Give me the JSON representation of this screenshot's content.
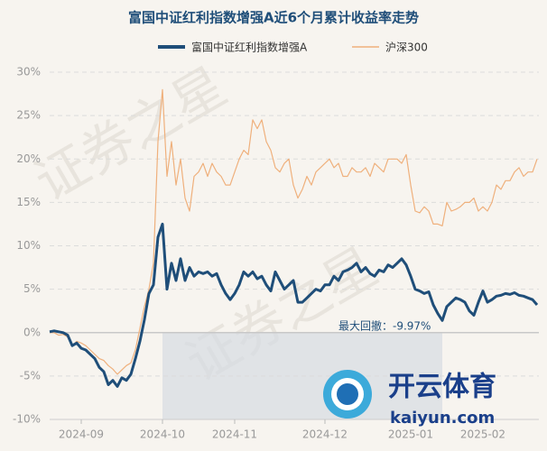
{
  "chart_data": {
    "type": "line",
    "title": "富国中证红利指数增强A近6个月累计收益率走势",
    "categories": [
      null,
      null,
      null,
      null,
      null,
      null,
      null,
      "2024-09",
      null,
      null,
      null,
      null,
      null,
      null,
      null,
      null,
      null,
      null,
      null,
      null,
      null,
      null,
      null,
      null,
      null,
      "2024-10",
      null,
      null,
      null,
      null,
      null,
      null,
      null,
      null,
      null,
      null,
      null,
      null,
      null,
      null,
      null,
      "2024-11",
      null,
      null,
      null,
      null,
      null,
      null,
      null,
      null,
      null,
      null,
      null,
      null,
      null,
      null,
      null,
      null,
      null,
      null,
      null,
      "2024-12",
      null,
      null,
      null,
      null,
      null,
      null,
      null,
      null,
      null,
      null,
      null,
      null,
      null,
      null,
      null,
      null,
      null,
      null,
      "2025-01",
      null,
      null,
      null,
      null,
      null,
      null,
      null,
      null,
      null,
      null,
      null,
      null,
      null,
      null,
      null,
      "2025-02",
      null,
      null,
      null,
      null,
      null,
      null,
      null,
      null,
      null,
      null,
      null,
      null
    ],
    "series": [
      {
        "name": "富国中证红利指数增强A",
        "color": "#1f4e79",
        "values": [
          0.1,
          0.2,
          0.1,
          0,
          -0.3,
          -1.5,
          -1.2,
          -1.8,
          -2,
          -2.5,
          -3,
          -4,
          -4.5,
          -6,
          -5.5,
          -6.2,
          -5.2,
          -5.5,
          -4.8,
          -3,
          -1,
          1.5,
          4.5,
          5.5,
          11,
          12.5,
          5,
          8,
          6,
          8.5,
          6,
          7.5,
          6.5,
          7,
          6.8,
          7,
          6.5,
          6.8,
          5.5,
          4.5,
          3.8,
          4.5,
          5.5,
          7,
          6.5,
          7,
          6.2,
          6.5,
          5.5,
          4.8,
          7,
          6,
          5,
          5.5,
          6,
          3.5,
          3.5,
          4,
          4.5,
          5,
          4.8,
          5.5,
          5.5,
          6.5,
          6,
          7,
          7.2,
          7.5,
          8,
          7,
          7.5,
          6.8,
          6.5,
          7.2,
          7,
          7.8,
          7.5,
          8,
          8.5,
          7.8,
          6.5,
          5,
          4.8,
          4.5,
          4.7,
          3.2,
          2.2,
          1.4,
          3,
          3.5,
          4,
          3.8,
          3.5,
          2.5,
          2,
          3.5,
          4.8,
          3.5,
          3.8,
          4.2,
          4.3,
          4.5,
          4.4,
          4.6,
          4.3,
          4.2,
          4,
          3.8,
          3.2
        ]
      },
      {
        "name": "沪深300",
        "color": "#efb07c",
        "values": [
          0,
          0,
          -0.3,
          -0.2,
          -0.5,
          -1.5,
          -1,
          -1.2,
          -1.5,
          -2,
          -2.5,
          -3,
          -3.2,
          -3.8,
          -4.2,
          -4.8,
          -4.3,
          -3.8,
          -3.5,
          -2,
          0.5,
          3,
          5,
          8,
          22,
          28,
          18,
          22,
          17,
          20,
          15.5,
          14,
          18,
          18.5,
          19.5,
          18,
          19.5,
          18.5,
          18,
          17,
          17,
          18.5,
          20,
          21,
          20.5,
          24.5,
          23.5,
          24.5,
          22,
          21,
          19,
          18.5,
          19.5,
          20,
          17,
          15.5,
          16.5,
          18,
          17,
          18.5,
          19,
          19.5,
          20,
          19,
          19.5,
          18,
          18,
          19,
          18.5,
          18.5,
          19,
          18,
          19.5,
          19,
          18.5,
          20,
          20,
          20,
          19.5,
          20.5,
          17,
          14,
          13.8,
          14.5,
          14,
          12.5,
          12.5,
          12.3,
          15,
          14,
          14.2,
          14.5,
          15,
          15,
          15.5,
          14,
          14.5,
          14,
          15,
          17,
          16.5,
          17.5,
          17.5,
          18.5,
          19,
          18,
          18.5,
          18.5,
          20
        ]
      }
    ],
    "ylim": [
      -10,
      30
    ],
    "yticks": [
      {
        "value": -10,
        "label": "-10%"
      },
      {
        "value": -5,
        "label": "-5%"
      },
      {
        "value": 0,
        "label": "0%"
      },
      {
        "value": 5,
        "label": "5%"
      },
      {
        "value": 10,
        "label": "10%"
      },
      {
        "value": 15,
        "label": "15%"
      },
      {
        "value": 20,
        "label": "20%"
      },
      {
        "value": 25,
        "label": "25%"
      },
      {
        "value": 30,
        "label": "30%"
      }
    ],
    "grid": true,
    "legend": "top",
    "annotation": "最大回撤：-9.97%",
    "watermarks": [
      "证券之星",
      "开云体育",
      "kaiyun.com"
    ]
  }
}
